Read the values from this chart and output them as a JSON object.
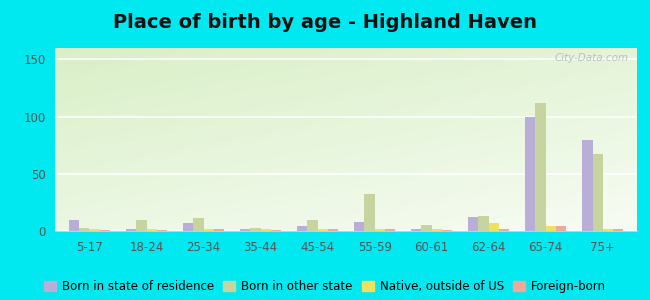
{
  "title": "Place of birth by age - Highland Haven",
  "categories": [
    "5-17",
    "18-24",
    "25-34",
    "35-44",
    "45-54",
    "55-59",
    "60-61",
    "62-64",
    "65-74",
    "75+"
  ],
  "series": {
    "Born in state of residence": [
      10,
      2,
      7,
      2,
      4,
      8,
      2,
      12,
      100,
      80
    ],
    "Born in other state": [
      3,
      10,
      11,
      3,
      10,
      32,
      5,
      13,
      112,
      67
    ],
    "Native, outside of US": [
      2,
      2,
      2,
      2,
      2,
      2,
      2,
      7,
      4,
      2
    ],
    "Foreign-born": [
      1,
      1,
      2,
      1,
      2,
      2,
      1,
      2,
      4,
      2
    ]
  },
  "colors": {
    "Born in state of residence": "#b8aed8",
    "Born in other state": "#c8d4a0",
    "Native, outside of US": "#f0e060",
    "Foreign-born": "#f0a898"
  },
  "ylim": [
    0,
    160
  ],
  "yticks": [
    0,
    50,
    100,
    150
  ],
  "outer_background": "#00e8f0",
  "watermark": "City-Data.com",
  "bar_width": 0.18,
  "title_fontsize": 14,
  "legend_fontsize": 8.5
}
